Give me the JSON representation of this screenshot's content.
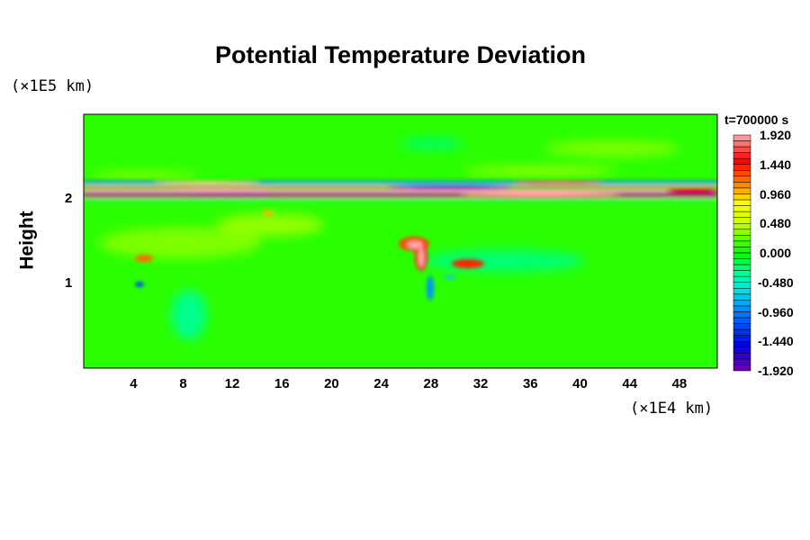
{
  "chart_data": {
    "type": "heatmap",
    "title": "Potential Temperature Deviation",
    "xlabel": "(×1E4 km)",
    "ylabel": "Height",
    "y_unit_label": "(×1E5 km)",
    "xlim": [
      0,
      51
    ],
    "ylim": [
      0,
      3.0
    ],
    "x_ticks": [
      4,
      8,
      12,
      16,
      20,
      24,
      28,
      32,
      36,
      40,
      44,
      48
    ],
    "y_ticks": [
      1,
      2
    ],
    "time_label": "t=700000 s",
    "colorbar": {
      "range": [
        -1.92,
        1.92
      ],
      "levels": 40,
      "tick_labels": [
        "1.920",
        "1.440",
        "0.960",
        "0.480",
        "0.000",
        "-0.480",
        "-0.960",
        "-1.440",
        "-1.920"
      ],
      "tick_values": [
        1.92,
        1.44,
        0.96,
        0.48,
        0.0,
        -0.48,
        -0.96,
        -1.44,
        -1.92
      ]
    },
    "features": [
      {
        "name": "stratified-band",
        "y_range": [
          2.0,
          2.25
        ],
        "values": "alternating -1.92 to 1.92"
      },
      {
        "name": "thermal-plume",
        "x": 27,
        "y": 1.3,
        "value": 1.6
      },
      {
        "name": "cold-wisp",
        "x": 27.5,
        "y": 0.85,
        "value": -1.0
      }
    ]
  }
}
